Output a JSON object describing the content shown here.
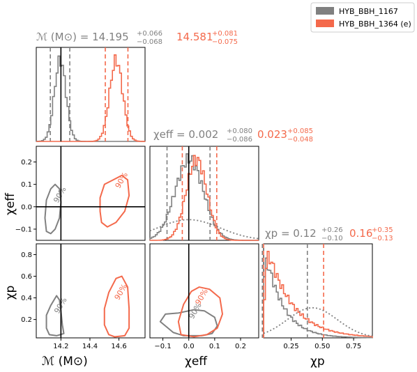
{
  "colors": {
    "grey": "#808080",
    "red": "#f4694b",
    "black": "#000000",
    "dotted": "#808080"
  },
  "legend": {
    "placement": "top-right",
    "entries": [
      {
        "label": "HYB_BBH_1167",
        "color": "#808080"
      },
      {
        "label": "HYB_BBH_1364 (e)",
        "color": "#f4694b"
      }
    ]
  },
  "axis_labels": {
    "mchirp": "ℳ (M⊙)",
    "chi_eff": "χeff",
    "chi_p": "χp"
  },
  "titles": {
    "mchirp": {
      "prefix": "ℳ (M⊙) = ",
      "grey": {
        "median": "14.195",
        "plus": "+0.066",
        "minus": "−0.068"
      },
      "red": {
        "median": "14.581",
        "plus": "+0.081",
        "minus": "−0.075"
      }
    },
    "chi_eff": {
      "prefix": "χeff = ",
      "grey": {
        "median": "0.002",
        "plus": "+0.080",
        "minus": "−0.086"
      },
      "red": {
        "median": "0.023",
        "plus": "+0.085",
        "minus": "−0.048"
      }
    },
    "chi_p": {
      "prefix": "χp = ",
      "grey": {
        "median": "0.12",
        "plus": "+0.26",
        "minus": "−0.10"
      },
      "red": {
        "median": "0.16",
        "plus": "+0.35",
        "minus": "−0.13"
      }
    }
  },
  "contour_label": "90%",
  "chart_data": {
    "type": "corner",
    "parameters": [
      "mchirp",
      "chi_eff",
      "chi_p"
    ],
    "ranges": {
      "mchirp": [
        14.03,
        14.78
      ],
      "chi_eff": [
        -0.15,
        0.27
      ],
      "chi_p": [
        0.03,
        0.9
      ]
    },
    "ticks": {
      "mchirp": [
        "14.2",
        "14.4",
        "14.6"
      ],
      "chi_eff": [
        "−0.1",
        "0.0",
        "0.1",
        "0.2"
      ],
      "chi_p": [
        "0.25",
        "0.50",
        "0.75"
      ],
      "chi_p_y": [
        "0.2",
        "0.4",
        "0.6",
        "0.8"
      ]
    },
    "tick_values": {
      "mchirp": [
        14.2,
        14.4,
        14.6
      ],
      "chi_eff": [
        -0.1,
        0.0,
        0.1,
        0.2
      ],
      "chi_p": [
        0.25,
        0.5,
        0.75
      ],
      "chi_p_y": [
        0.2,
        0.4,
        0.6,
        0.8
      ]
    },
    "injection": {
      "mchirp": 14.2,
      "chi_eff": 0.0
    },
    "series": [
      {
        "name": "HYB_BBH_1167",
        "color": "#808080",
        "mchirp": {
          "median": 14.195,
          "lo": 14.127,
          "hi": 14.261,
          "mean": 14.195,
          "sd": 0.04
        },
        "chi_eff": {
          "median": 0.002,
          "lo": -0.084,
          "hi": 0.082,
          "mean": 0.002,
          "sd": 0.055
        },
        "chi_p": {
          "median": 0.12,
          "lo": 0.02,
          "hi": 0.38,
          "decay": 0.14
        },
        "contour_mchirp_chi_eff": [
          [
            14.1,
            -0.11
          ],
          [
            14.09,
            -0.05
          ],
          [
            14.1,
            0.03
          ],
          [
            14.13,
            0.08
          ],
          [
            14.16,
            0.1
          ],
          [
            14.19,
            0.08
          ],
          [
            14.2,
            0.02
          ],
          [
            14.19,
            -0.05
          ],
          [
            14.16,
            -0.1
          ],
          [
            14.13,
            -0.12
          ]
        ],
        "contour_mchirp_chi_p": [
          [
            14.12,
            0.06
          ],
          [
            14.1,
            0.12
          ],
          [
            14.1,
            0.24
          ],
          [
            14.13,
            0.33
          ],
          [
            14.17,
            0.42
          ],
          [
            14.19,
            0.38
          ],
          [
            14.2,
            0.28
          ],
          [
            14.21,
            0.15
          ],
          [
            14.22,
            0.07
          ],
          [
            14.17,
            0.05
          ]
        ],
        "contour_chi_eff_chi_p": [
          [
            -0.08,
            0.12
          ],
          [
            -0.11,
            0.18
          ],
          [
            -0.09,
            0.25
          ],
          [
            -0.04,
            0.26
          ],
          [
            0.02,
            0.29
          ],
          [
            0.06,
            0.28
          ],
          [
            0.1,
            0.22
          ],
          [
            0.11,
            0.14
          ],
          [
            0.09,
            0.07
          ],
          [
            0.05,
            0.05
          ],
          [
            -0.02,
            0.05
          ],
          [
            -0.06,
            0.08
          ]
        ]
      },
      {
        "name": "HYB_BBH_1364 (e)",
        "color": "#f4694b",
        "mchirp": {
          "median": 14.581,
          "lo": 14.506,
          "hi": 14.662,
          "mean": 14.581,
          "sd": 0.045
        },
        "chi_eff": {
          "median": 0.023,
          "lo": -0.025,
          "hi": 0.108,
          "mean": 0.03,
          "sd": 0.04
        },
        "chi_p": {
          "median": 0.16,
          "lo": 0.03,
          "hi": 0.51,
          "decay": 0.2
        },
        "contour_mchirp_chi_eff": [
          [
            14.47,
            -0.02
          ],
          [
            14.47,
            0.04
          ],
          [
            14.5,
            0.1
          ],
          [
            14.56,
            0.12
          ],
          [
            14.62,
            0.14
          ],
          [
            14.66,
            0.12
          ],
          [
            14.67,
            0.05
          ],
          [
            14.64,
            -0.02
          ],
          [
            14.58,
            -0.07
          ],
          [
            14.52,
            -0.09
          ],
          [
            14.48,
            -0.07
          ]
        ],
        "contour_mchirp_chi_p": [
          [
            14.53,
            0.06
          ],
          [
            14.5,
            0.15
          ],
          [
            14.5,
            0.3
          ],
          [
            14.53,
            0.45
          ],
          [
            14.58,
            0.58
          ],
          [
            14.62,
            0.6
          ],
          [
            14.66,
            0.5
          ],
          [
            14.67,
            0.3
          ],
          [
            14.67,
            0.12
          ],
          [
            14.64,
            0.05
          ],
          [
            14.57,
            0.04
          ]
        ],
        "contour_chi_eff_chi_p": [
          [
            -0.03,
            0.06
          ],
          [
            -0.04,
            0.18
          ],
          [
            -0.02,
            0.34
          ],
          [
            0.01,
            0.46
          ],
          [
            0.04,
            0.5
          ],
          [
            0.08,
            0.48
          ],
          [
            0.12,
            0.4
          ],
          [
            0.13,
            0.25
          ],
          [
            0.11,
            0.12
          ],
          [
            0.07,
            0.06
          ],
          [
            0.02,
            0.04
          ]
        ]
      }
    ],
    "prior": {
      "chi_eff": "dotted",
      "chi_p": "dotted"
    }
  }
}
